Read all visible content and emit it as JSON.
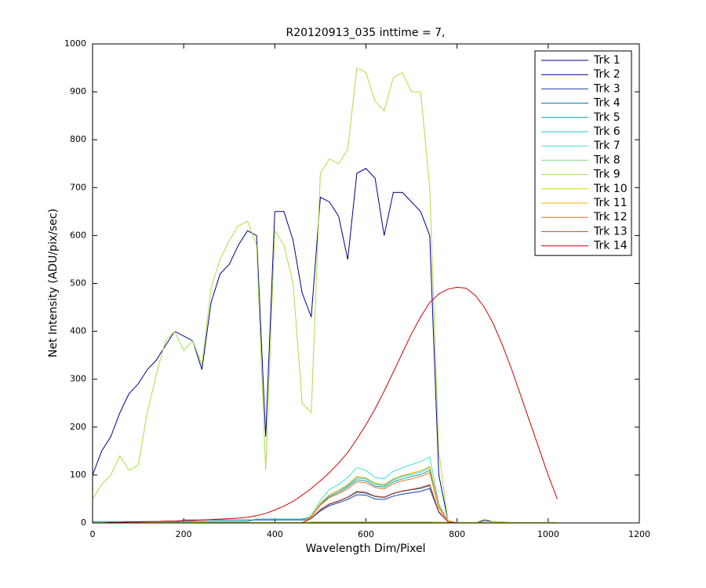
{
  "chart_data": {
    "type": "line",
    "title": "R20120913_035 inttime = 7,",
    "xlabel": "Wavelength Dim/Pixel",
    "ylabel": "Net Intensity (ADU/pix/sec)",
    "xlim": [
      0,
      1200
    ],
    "xticks": [
      0,
      200,
      400,
      600,
      800,
      1000,
      1200
    ],
    "ylim": [
      0,
      1000
    ],
    "yticks": [
      0,
      100,
      200,
      300,
      400,
      500,
      600,
      700,
      800,
      900,
      1000
    ],
    "grid": false,
    "legend": "upper right",
    "x": [
      0,
      20,
      40,
      60,
      80,
      100,
      120,
      140,
      160,
      180,
      200,
      220,
      240,
      260,
      280,
      300,
      320,
      340,
      360,
      380,
      400,
      420,
      440,
      460,
      480,
      500,
      520,
      540,
      560,
      580,
      600,
      620,
      640,
      660,
      680,
      700,
      720,
      740,
      760,
      780,
      800,
      820,
      840,
      860,
      880,
      900,
      920,
      940,
      960,
      980,
      1000,
      1020
    ],
    "series": [
      {
        "name": "Trk 1",
        "color": "#000080",
        "values": [
          0,
          0,
          0,
          0,
          0,
          0,
          0,
          0,
          0,
          0,
          0,
          0,
          0,
          0,
          0,
          0,
          0,
          0,
          0,
          0,
          0,
          0,
          0,
          0,
          1,
          1,
          1,
          1,
          1,
          1,
          1,
          1,
          1,
          1,
          1,
          1,
          1,
          1,
          1,
          0,
          0,
          0,
          0,
          0,
          0,
          0,
          0,
          0,
          0,
          0,
          0,
          0
        ]
      },
      {
        "name": "Trk 2",
        "color": "#00008f",
        "values": [
          100,
          150,
          180,
          230,
          270,
          290,
          320,
          340,
          370,
          400,
          390,
          380,
          320,
          460,
          520,
          540,
          580,
          610,
          600,
          180,
          650,
          650,
          590,
          480,
          430,
          680,
          670,
          640,
          550,
          730,
          740,
          720,
          600,
          690,
          690,
          670,
          650,
          600,
          100,
          5,
          0,
          0,
          0,
          5,
          3,
          2,
          0,
          0,
          0,
          0,
          0,
          0
        ]
      },
      {
        "name": "Trk 3",
        "color": "#1c40a8",
        "values": [
          0,
          0,
          0,
          0,
          0,
          0,
          0,
          0,
          0,
          0,
          0,
          0,
          0,
          0,
          0,
          0,
          0,
          0,
          0,
          0,
          0,
          0,
          0,
          0,
          9,
          25,
          36,
          42,
          49,
          59,
          58,
          50,
          49,
          56,
          60,
          63,
          66,
          72,
          22,
          2,
          0,
          0,
          0,
          0,
          0,
          0,
          0,
          0,
          0,
          0,
          0,
          0
        ]
      },
      {
        "name": "Trk 4",
        "color": "#00709a",
        "values": [
          0,
          0,
          0,
          0,
          0,
          0,
          0,
          0,
          0,
          0,
          6,
          6,
          6,
          6,
          6,
          6,
          6,
          6,
          6,
          6,
          6,
          6,
          6,
          6,
          9,
          27,
          39,
          45,
          53,
          64,
          62,
          55,
          53,
          61,
          66,
          69,
          72,
          78,
          23,
          2,
          0,
          0,
          0,
          0,
          0,
          0,
          0,
          0,
          0,
          0,
          0,
          0
        ]
      },
      {
        "name": "Trk 5",
        "color": "#00a0b0",
        "values": [
          3,
          3,
          3,
          3,
          3,
          3,
          3,
          3,
          3,
          3,
          3,
          3,
          3,
          3,
          3,
          3,
          3,
          3,
          8,
          8,
          8,
          8,
          8,
          8,
          13,
          39,
          55,
          64,
          75,
          90,
          88,
          77,
          75,
          86,
          92,
          97,
          101,
          110,
          33,
          3,
          0,
          0,
          0,
          0,
          0,
          0,
          0,
          0,
          0,
          0,
          0,
          0
        ]
      },
      {
        "name": "Trk 6",
        "color": "#20c8c8",
        "values": [
          0,
          0,
          0,
          0,
          0,
          0,
          0,
          0,
          0,
          0,
          0,
          0,
          0,
          0,
          0,
          0,
          0,
          0,
          0,
          0,
          0,
          0,
          0,
          0,
          14,
          40,
          58,
          67,
          78,
          94,
          92,
          81,
          78,
          90,
          97,
          101,
          106,
          115,
          35,
          3,
          0,
          0,
          0,
          0,
          0,
          0,
          0,
          0,
          0,
          0,
          0,
          0
        ]
      },
      {
        "name": "Trk 7",
        "color": "#40e0d0",
        "values": [
          0,
          0,
          0,
          0,
          0,
          0,
          0,
          0,
          0,
          0,
          0,
          0,
          0,
          0,
          0,
          0,
          0,
          0,
          0,
          0,
          0,
          0,
          0,
          0,
          16,
          47,
          70,
          80,
          95,
          115,
          110,
          95,
          92,
          108,
          115,
          122,
          128,
          138,
          40,
          4,
          0,
          0,
          0,
          0,
          0,
          0,
          0,
          0,
          0,
          0,
          0,
          0
        ]
      },
      {
        "name": "Trk 8",
        "color": "#80e080",
        "values": [
          0,
          0,
          0,
          0,
          0,
          0,
          0,
          0,
          0,
          0,
          0,
          0,
          0,
          0,
          0,
          0,
          0,
          0,
          0,
          0,
          0,
          0,
          0,
          0,
          2,
          2,
          2,
          2,
          2,
          2,
          2,
          2,
          2,
          2,
          2,
          2,
          2,
          2,
          1,
          0,
          0,
          0,
          0,
          0,
          0,
          0,
          0,
          0,
          0,
          0,
          0,
          0
        ]
      },
      {
        "name": "Trk 9",
        "color": "#a8e040",
        "values": [
          50,
          80,
          100,
          140,
          110,
          120,
          230,
          310,
          380,
          400,
          360,
          380,
          330,
          490,
          550,
          590,
          620,
          630,
          580,
          110,
          610,
          580,
          500,
          250,
          230,
          730,
          760,
          750,
          780,
          950,
          940,
          880,
          860,
          930,
          940,
          900,
          900,
          700,
          150,
          5,
          0,
          0,
          0,
          8,
          3,
          2,
          0,
          0,
          0,
          0,
          0,
          0
        ]
      },
      {
        "name": "Trk 10",
        "color": "#d0e000",
        "values": [
          1,
          1,
          1,
          1,
          1,
          1,
          1,
          1,
          1,
          1,
          1,
          1,
          1,
          1,
          1,
          1,
          1,
          1,
          1,
          1,
          1,
          1,
          1,
          1,
          2,
          2,
          2,
          2,
          2,
          2,
          2,
          2,
          2,
          2,
          2,
          2,
          2,
          2,
          2,
          1,
          1,
          1,
          1,
          1,
          1,
          1,
          1,
          1,
          1,
          1,
          1,
          1
        ]
      },
      {
        "name": "Trk 11",
        "color": "#f0b000",
        "values": [
          0,
          0,
          0,
          0,
          0,
          0,
          0,
          0,
          0,
          0,
          0,
          0,
          0,
          0,
          0,
          0,
          0,
          0,
          0,
          0,
          0,
          0,
          0,
          0,
          14,
          41,
          59,
          68,
          80,
          97,
          94,
          83,
          80,
          92,
          99,
          104,
          109,
          118,
          35,
          4,
          0,
          0,
          0,
          0,
          0,
          0,
          0,
          0,
          0,
          0,
          0,
          0
        ]
      },
      {
        "name": "Trk 12",
        "color": "#f07020",
        "values": [
          0,
          0,
          0,
          0,
          0,
          0,
          0,
          0,
          0,
          0,
          0,
          0,
          0,
          0,
          0,
          0,
          0,
          0,
          0,
          0,
          0,
          0,
          0,
          0,
          13,
          37,
          53,
          61,
          71,
          86,
          84,
          74,
          71,
          82,
          88,
          92,
          97,
          105,
          32,
          3,
          0,
          0,
          0,
          0,
          0,
          0,
          0,
          0,
          0,
          0,
          0,
          0
        ]
      },
      {
        "name": "Trk 13",
        "color": "#e04020",
        "values": [
          0,
          0,
          0,
          0,
          0,
          0,
          0,
          0,
          0,
          0,
          0,
          0,
          0,
          0,
          0,
          0,
          0,
          0,
          0,
          0,
          0,
          0,
          0,
          0,
          10,
          28,
          40,
          46,
          54,
          66,
          64,
          56,
          54,
          62,
          67,
          70,
          74,
          80,
          24,
          2,
          0,
          0,
          0,
          0,
          0,
          0,
          0,
          0,
          0,
          0,
          0,
          0
        ]
      },
      {
        "name": "Trk 14",
        "color": "#d00000",
        "values": [
          0,
          0,
          1,
          1,
          2,
          2,
          3,
          3,
          4,
          4,
          5,
          5,
          6,
          7,
          8,
          9,
          10,
          12,
          15,
          20,
          27,
          35,
          45,
          58,
          72,
          88,
          105,
          125,
          147,
          175,
          205,
          238,
          275,
          315,
          355,
          395,
          430,
          460,
          478,
          488,
          492,
          490,
          475,
          450,
          415,
          370,
          320,
          265,
          210,
          155,
          100,
          50
        ]
      }
    ]
  }
}
